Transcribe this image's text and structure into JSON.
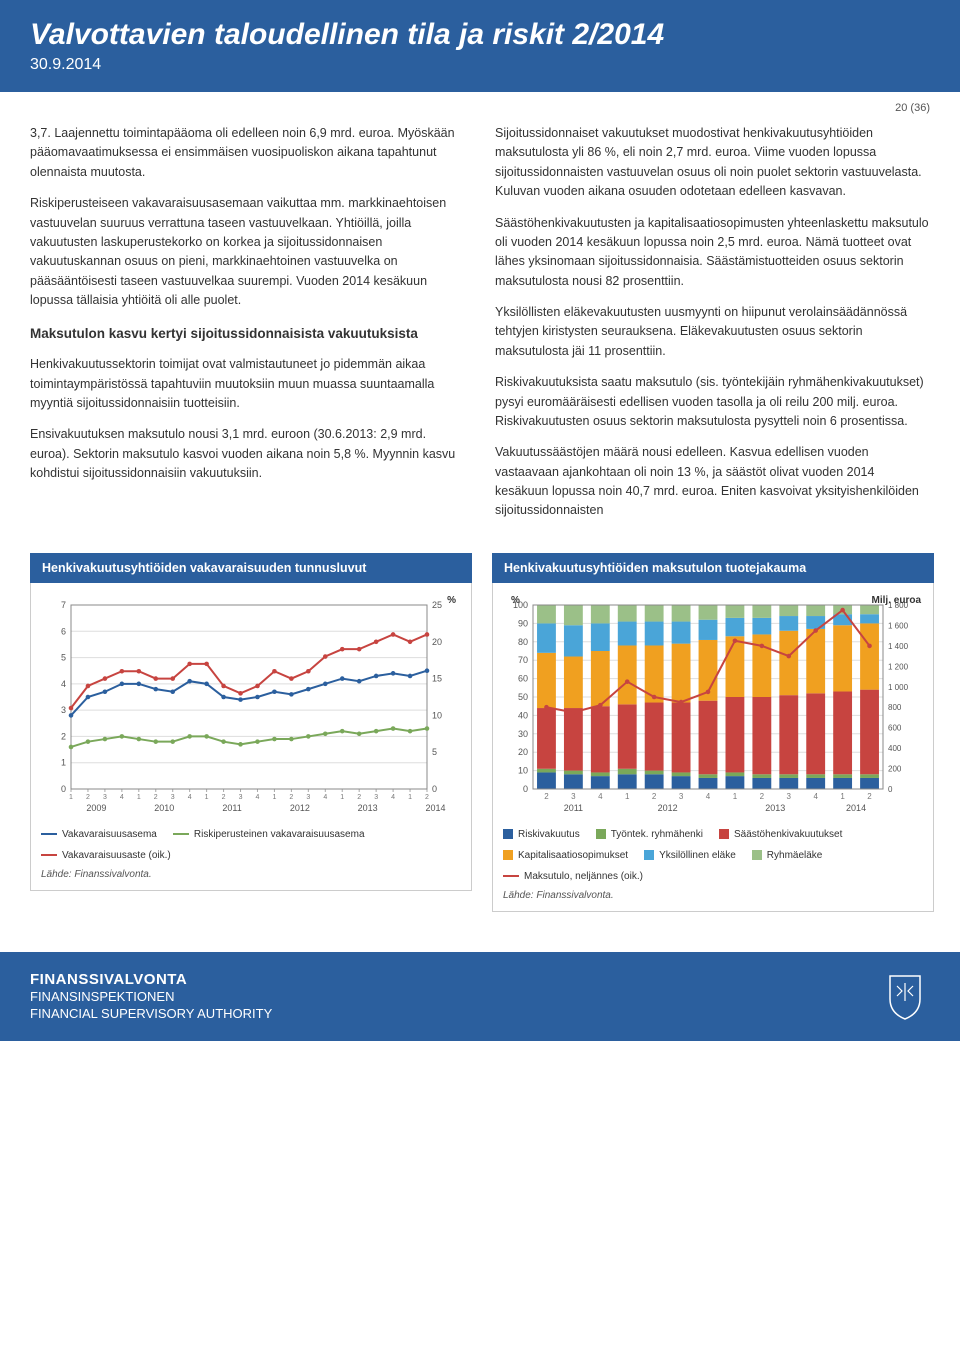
{
  "header": {
    "title": "Valvottavien taloudellinen tila ja riskit 2/2014",
    "date": "30.9.2014"
  },
  "page_num": "20 (36)",
  "left_col": {
    "p1": "3,7. Laajennettu toimintapääoma oli edelleen noin 6,9 mrd. euroa. Myöskään pääomavaatimuksessa ei ensimmäisen vuosipuoliskon aikana tapahtunut olennaista muutosta.",
    "p2": "Riskiperusteiseen vakavaraisuusasemaan vaikuttaa mm. markkinaehtoisen vastuuvelan suuruus verrattuna taseen vastuuvelkaan. Yhtiöillä, joilla vakuutusten laskuperustekorko on korkea ja sijoitussidonnaisen vakuutuskannan osuus on pieni, markkinaehtoinen vastuuvelka on pääsääntöisesti taseen vastuuvelkaa suurempi. Vuoden 2014 kesäkuun lopussa tällaisia yhtiöitä oli alle puolet.",
    "sub1": "Maksutulon kasvu kertyi sijoitussidonnaisista vakuutuksista",
    "p3": "Henkivakuutussektorin toimijat ovat valmistautuneet jo pidemmän aikaa toimintaympäristössä tapahtuviin muutoksiin muun muassa suuntaamalla myyntiä sijoitussidonnaisiin tuotteisiin.",
    "p4": "Ensivakuutuksen maksutulo nousi 3,1 mrd. euroon (30.6.2013: 2,9 mrd. euroa). Sektorin maksutulo kasvoi vuoden aikana noin 5,8 %. Myynnin kasvu kohdistui sijoitussidonnaisiin vakuutuksiin."
  },
  "right_col": {
    "p1": "Sijoitussidonnaiset vakuutukset muodostivat henkivakuutusyhtiöiden maksutulosta yli 86 %, eli noin 2,7 mrd. euroa. Viime vuoden lopussa sijoitussidonnaisten vastuuvelan osuus oli noin puolet sektorin vastuuvelasta. Kuluvan vuoden aikana osuuden odotetaan edelleen kasvavan.",
    "p2": "Säästöhenkivakuutusten ja kapitalisaatiosopimusten yhteenlaskettu maksutulo oli vuoden 2014 kesäkuun lopussa noin 2,5 mrd. euroa. Nämä tuotteet ovat lähes yksinomaan sijoitussidonnaisia. Säästämistuotteiden osuus sektorin maksutulosta nousi 82 prosenttiin.",
    "p3": "Yksilöllisten eläkevakuutusten uusmyynti on hiipunut verolainsäädännössä tehtyjen kiristysten seurauksena. Eläkevakuutusten osuus sektorin maksutulosta jäi 11 prosenttiin.",
    "p4": "Riskivakuutuksista saatu maksutulo (sis. työntekijäin ryhmähenkivakuutukset) pysyi euromääräisesti edellisen vuoden tasolla ja oli reilu 200 milj. euroa. Riskivakuutusten osuus sektorin maksutulosta pysytteli noin 6 prosentissa.",
    "p5": "Vakuutussäästöjen määrä nousi edelleen. Kasvua edellisen vuoden vastaavaan ajankohtaan oli noin 13 %, ja säästöt olivat vuoden 2014 kesäkuun lopussa noin 40,7 mrd. euroa. Eniten kasvoivat yksityishenkilöiden sijoitussidonnaisten"
  },
  "chart1": {
    "title": "Henkivakuutusyhtiöiden vakavaraisuuden tunnusluvut",
    "type": "line",
    "left_label": "",
    "right_label": "%",
    "ylim_left": [
      0,
      7
    ],
    "ylim_right": [
      0,
      25
    ],
    "yticks_left": [
      0,
      1,
      2,
      3,
      4,
      5,
      6,
      7
    ],
    "yticks_right": [
      0,
      5,
      10,
      15,
      20,
      25
    ],
    "years": [
      "2009",
      "2010",
      "2011",
      "2012",
      "2013",
      "2014"
    ],
    "quarters_per_year": 4,
    "series": [
      {
        "name": "Vakavaraisuusasema",
        "color": "#2b5f9e",
        "axis": "left",
        "values": [
          2.8,
          3.5,
          3.7,
          4.0,
          4.0,
          3.8,
          3.7,
          4.1,
          4.0,
          3.5,
          3.4,
          3.5,
          3.7,
          3.6,
          3.8,
          4.0,
          4.2,
          4.1,
          4.3,
          4.4,
          4.3,
          4.5
        ]
      },
      {
        "name": "Riskiperusteinen vakavaraisuusasema",
        "color": "#7aa85a",
        "axis": "left",
        "values": [
          1.6,
          1.8,
          1.9,
          2.0,
          1.9,
          1.8,
          1.8,
          2.0,
          2.0,
          1.8,
          1.7,
          1.8,
          1.9,
          1.9,
          2.0,
          2.1,
          2.2,
          2.1,
          2.2,
          2.3,
          2.2,
          2.3
        ]
      },
      {
        "name": "Vakavaraisuusaste (oik.)",
        "color": "#c74440",
        "axis": "right",
        "values": [
          11,
          14,
          15,
          16,
          16,
          15,
          15,
          17,
          17,
          14,
          13,
          14,
          16,
          15,
          16,
          18,
          19,
          19,
          20,
          21,
          20,
          21
        ]
      }
    ],
    "source": "Lähde: Finanssivalvonta.",
    "background_color": "#ffffff",
    "grid_color": "#dddddd"
  },
  "chart2": {
    "title": "Henkivakuutusyhtiöiden maksutulon tuotejakauma",
    "type": "stacked_bar_with_line",
    "left_label": "%",
    "right_label": "Milj. euroa",
    "ylim_left": [
      0,
      100
    ],
    "ylim_right": [
      0,
      1800
    ],
    "yticks_left": [
      0,
      10,
      20,
      30,
      40,
      50,
      60,
      70,
      80,
      90,
      100
    ],
    "yticks_right": [
      0,
      200,
      400,
      600,
      800,
      1000,
      1200,
      1400,
      1600,
      1800
    ],
    "years": [
      "2011",
      "2012",
      "2013",
      "2014"
    ],
    "x_labels": [
      "2",
      "3",
      "4",
      "1",
      "2",
      "3",
      "4",
      "1",
      "2",
      "3",
      "4",
      "1",
      "2"
    ],
    "stack_order": [
      "Riskivakuutus",
      "Työntek. ryhmähenki",
      "Säästöhenkivakuutukset",
      "Kapitalisaatiosopimukset",
      "Yksilöllinen eläke",
      "Ryhmäeläke"
    ],
    "colors": {
      "Riskivakuutus": "#2b5f9e",
      "Työntek. ryhmähenki": "#7aa85a",
      "Säästöhenkivakuutukset": "#c74440",
      "Kapitalisaatiosopimukset": "#f0a020",
      "Yksilöllinen eläke": "#4aa5d8",
      "Ryhmäeläke": "#9bc088"
    },
    "bars": [
      {
        "Riskivakuutus": 9,
        "Työntek. ryhmähenki": 2,
        "Säästöhenkivakuutukset": 33,
        "Kapitalisaatiosopimukset": 30,
        "Yksilöllinen eläke": 16,
        "Ryhmäeläke": 10
      },
      {
        "Riskivakuutus": 8,
        "Työntek. ryhmähenki": 2,
        "Säästöhenkivakuutukset": 34,
        "Kapitalisaatiosopimukset": 28,
        "Yksilöllinen eläke": 17,
        "Ryhmäeläke": 11
      },
      {
        "Riskivakuutus": 7,
        "Työntek. ryhmähenki": 2,
        "Säästöhenkivakuutukset": 36,
        "Kapitalisaatiosopimukset": 30,
        "Yksilöllinen eläke": 15,
        "Ryhmäeläke": 10
      },
      {
        "Riskivakuutus": 8,
        "Työntek. ryhmähenki": 3,
        "Säästöhenkivakuutukset": 35,
        "Kapitalisaatiosopimukset": 32,
        "Yksilöllinen eläke": 13,
        "Ryhmäeläke": 9
      },
      {
        "Riskivakuutus": 8,
        "Työntek. ryhmähenki": 2,
        "Säästöhenkivakuutukset": 37,
        "Kapitalisaatiosopimukset": 31,
        "Yksilöllinen eläke": 13,
        "Ryhmäeläke": 9
      },
      {
        "Riskivakuutus": 7,
        "Työntek. ryhmähenki": 2,
        "Säästöhenkivakuutukset": 38,
        "Kapitalisaatiosopimukset": 32,
        "Yksilöllinen eläke": 12,
        "Ryhmäeläke": 9
      },
      {
        "Riskivakuutus": 6,
        "Työntek. ryhmähenki": 2,
        "Säästöhenkivakuutukset": 40,
        "Kapitalisaatiosopimukset": 33,
        "Yksilöllinen eläke": 11,
        "Ryhmäeläke": 8
      },
      {
        "Riskivakuutus": 7,
        "Työntek. ryhmähenki": 2,
        "Säästöhenkivakuutukset": 41,
        "Kapitalisaatiosopimukset": 33,
        "Yksilöllinen eläke": 10,
        "Ryhmäeläke": 7
      },
      {
        "Riskivakuutus": 6,
        "Työntek. ryhmähenki": 2,
        "Säästöhenkivakuutukset": 42,
        "Kapitalisaatiosopimukset": 34,
        "Yksilöllinen eläke": 9,
        "Ryhmäeläke": 7
      },
      {
        "Riskivakuutus": 6,
        "Työntek. ryhmähenki": 2,
        "Säästöhenkivakuutukset": 43,
        "Kapitalisaatiosopimukset": 35,
        "Yksilöllinen eläke": 8,
        "Ryhmäeläke": 6
      },
      {
        "Riskivakuutus": 6,
        "Työntek. ryhmähenki": 2,
        "Säästöhenkivakuutukset": 44,
        "Kapitalisaatiosopimukset": 35,
        "Yksilöllinen eläke": 7,
        "Ryhmäeläke": 6
      },
      {
        "Riskivakuutus": 6,
        "Työntek. ryhmähenki": 2,
        "Säästöhenkivakuutukset": 45,
        "Kapitalisaatiosopimukset": 36,
        "Yksilöllinen eläke": 6,
        "Ryhmäeläke": 5
      },
      {
        "Riskivakuutus": 6,
        "Työntek. ryhmähenki": 2,
        "Säästöhenkivakuutukset": 46,
        "Kapitalisaatiosopimukset": 36,
        "Yksilöllinen eläke": 5,
        "Ryhmäeläke": 5
      }
    ],
    "line_series": {
      "name": "Maksutulo, neljännes (oik.)",
      "color": "#c74440",
      "values": [
        800,
        750,
        820,
        1050,
        900,
        850,
        950,
        1450,
        1400,
        1300,
        1550,
        1750,
        1400
      ]
    },
    "source": "Lähde: Finanssivalvonta.",
    "bar_width": 0.7,
    "background_color": "#ffffff",
    "grid_color": "#dddddd"
  },
  "footer": {
    "l1": "FINANSSIVALVONTA",
    "l2": "FINANSINSPEKTIONEN",
    "l3": "FINANCIAL SUPERVISORY AUTHORITY"
  }
}
